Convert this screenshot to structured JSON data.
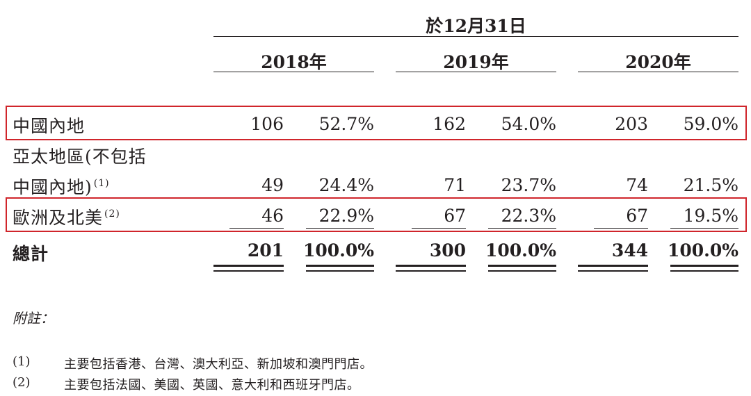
{
  "header": {
    "period": "於12月31日",
    "years": [
      "2018年",
      "2019年",
      "2020年"
    ]
  },
  "rows": [
    {
      "label": "中國內地",
      "sup": "",
      "values": [
        [
          "106",
          "52.7%"
        ],
        [
          "162",
          "54.0%"
        ],
        [
          "203",
          "59.0%"
        ]
      ]
    },
    {
      "label": "亞太地區(不包括",
      "label2": "中國內地)",
      "sup": "(1)",
      "values": [
        [
          "49",
          "24.4%"
        ],
        [
          "71",
          "23.7%"
        ],
        [
          "74",
          "21.5%"
        ]
      ]
    },
    {
      "label": "歐洲及北美",
      "sup": "(2)",
      "values": [
        [
          "46",
          "22.9%"
        ],
        [
          "67",
          "22.3%"
        ],
        [
          "67",
          "19.5%"
        ]
      ]
    }
  ],
  "total": {
    "label": "總計",
    "values": [
      [
        "201",
        "100.0%"
      ],
      [
        "300",
        "100.0%"
      ],
      [
        "344",
        "100.0%"
      ]
    ]
  },
  "notes": {
    "heading": "附註：",
    "items": [
      {
        "marker": "(1)",
        "text": "主要包括香港、台灣、澳大利亞、新加坡和澳門門店。"
      },
      {
        "marker": "(2)",
        "text": "主要包括法國、美國、英國、意大利和西班牙門店。"
      }
    ]
  },
  "colors": {
    "highlight": "#d0252b",
    "text": "#231f20"
  }
}
